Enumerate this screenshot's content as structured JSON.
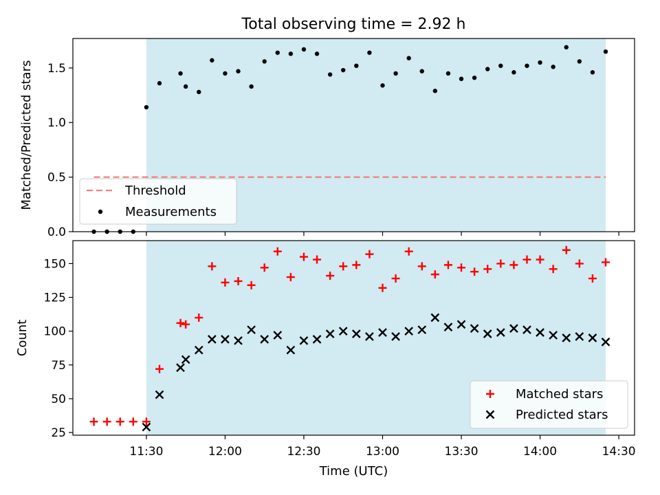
{
  "colors": {
    "shade": "#add8e6",
    "threshold": "#f08080",
    "matched": "#ff0000",
    "predicted": "#000000",
    "measurement": "#000000"
  },
  "chart_data": [
    {
      "type": "scatter",
      "title": "Total observing time = 2.92 h",
      "xlabel": "",
      "ylabel": "Matched/Predicted stars",
      "xlim": [
        "11:02",
        "14:36"
      ],
      "ylim": [
        0,
        1.77
      ],
      "yticks": [
        "0.0",
        "0.5",
        "1.0",
        "1.5"
      ],
      "shaded_span": [
        "11:30",
        "14:25"
      ],
      "threshold": {
        "name": "Threshold",
        "y": 0.5,
        "x_range": [
          "11:10",
          "14:25"
        ],
        "style": "dashed"
      },
      "legend": {
        "position": "lower-left",
        "entries": [
          "Threshold",
          "Measurements"
        ]
      },
      "series": [
        {
          "name": "Measurements",
          "marker": "dot",
          "x": [
            "11:10",
            "11:15",
            "11:20",
            "11:25",
            "11:30",
            "11:35",
            "11:43",
            "11:45",
            "11:50",
            "11:55",
            "12:00",
            "12:05",
            "12:10",
            "12:15",
            "12:20",
            "12:25",
            "12:30",
            "12:35",
            "12:40",
            "12:45",
            "12:50",
            "12:55",
            "13:00",
            "13:05",
            "13:10",
            "13:15",
            "13:20",
            "13:25",
            "13:30",
            "13:35",
            "13:40",
            "13:45",
            "13:50",
            "13:55",
            "14:00",
            "14:05",
            "14:10",
            "14:15",
            "14:20",
            "14:25"
          ],
          "y": [
            0,
            0,
            0,
            0,
            1.14,
            1.36,
            1.45,
            1.33,
            1.28,
            1.57,
            1.45,
            1.47,
            1.33,
            1.56,
            1.64,
            1.63,
            1.67,
            1.63,
            1.44,
            1.48,
            1.52,
            1.64,
            1.34,
            1.45,
            1.59,
            1.47,
            1.29,
            1.45,
            1.4,
            1.41,
            1.49,
            1.52,
            1.46,
            1.52,
            1.55,
            1.51,
            1.69,
            1.56,
            1.46,
            1.65
          ]
        }
      ]
    },
    {
      "type": "scatter",
      "title": "",
      "xlabel": "Time (UTC)",
      "ylabel": "Count",
      "xlim": [
        "11:02",
        "14:36"
      ],
      "ylim": [
        23,
        167
      ],
      "yticks": [
        "25",
        "50",
        "75",
        "100",
        "125",
        "150"
      ],
      "xticks": [
        "11:30",
        "12:00",
        "12:30",
        "13:00",
        "13:30",
        "14:00",
        "14:30"
      ],
      "shaded_span": [
        "11:30",
        "14:25"
      ],
      "legend": {
        "position": "lower-right",
        "entries": [
          "Matched stars",
          "Predicted stars"
        ]
      },
      "series": [
        {
          "name": "Matched stars",
          "marker": "plus",
          "x": [
            "11:10",
            "11:15",
            "11:20",
            "11:25",
            "11:30",
            "11:35",
            "11:43",
            "11:45",
            "11:50",
            "11:55",
            "12:00",
            "12:05",
            "12:10",
            "12:15",
            "12:20",
            "12:25",
            "12:30",
            "12:35",
            "12:40",
            "12:45",
            "12:50",
            "12:55",
            "13:00",
            "13:05",
            "13:10",
            "13:15",
            "13:20",
            "13:25",
            "13:30",
            "13:35",
            "13:40",
            "13:45",
            "13:50",
            "13:55",
            "14:00",
            "14:05",
            "14:10",
            "14:15",
            "14:20",
            "14:25"
          ],
          "y": [
            33,
            33,
            33,
            33,
            33,
            72,
            106,
            105,
            110,
            148,
            136,
            137,
            134,
            147,
            159,
            140,
            155,
            153,
            141,
            148,
            149,
            157,
            132,
            139,
            159,
            148,
            142,
            149,
            147,
            144,
            146,
            150,
            149,
            153,
            153,
            146,
            160,
            150,
            139,
            151
          ]
        },
        {
          "name": "Predicted stars",
          "marker": "x",
          "x": [
            "11:30",
            "11:35",
            "11:43",
            "11:45",
            "11:50",
            "11:55",
            "12:00",
            "12:05",
            "12:10",
            "12:15",
            "12:20",
            "12:25",
            "12:30",
            "12:35",
            "12:40",
            "12:45",
            "12:50",
            "12:55",
            "13:00",
            "13:05",
            "13:10",
            "13:15",
            "13:20",
            "13:25",
            "13:30",
            "13:35",
            "13:40",
            "13:45",
            "13:50",
            "13:55",
            "14:00",
            "14:05",
            "14:10",
            "14:15",
            "14:20",
            "14:25"
          ],
          "y": [
            29,
            53,
            73,
            79,
            86,
            94,
            94,
            93,
            101,
            94,
            97,
            86,
            93,
            94,
            98,
            100,
            98,
            96,
            99,
            96,
            100,
            101,
            110,
            103,
            105,
            102,
            98,
            99,
            102,
            101,
            99,
            97,
            95,
            96,
            95,
            92
          ]
        }
      ]
    }
  ]
}
